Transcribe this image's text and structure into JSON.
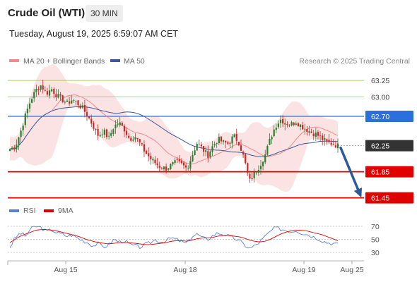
{
  "header": {
    "instrument": "Crude Oil (WTI)",
    "timeframe": "30 MIN",
    "datetime": "Tuesday, August 19, 2025 6:59:07 AM CET"
  },
  "legend": {
    "ma20_label": "MA 20 + Bollinger Bands",
    "ma50_label": "MA 50",
    "copyright": "Research © 2025 Trading Central"
  },
  "colors": {
    "bull_candle": "#2e7d32",
    "bear_candle": "#c62828",
    "ma20": "#ef8a8a",
    "ma50": "#3b5998",
    "bollinger_fill": "#fbdada",
    "support": "#e00000",
    "resistance": "#2a6fdb",
    "upper_levels": "#8bc34a",
    "arrow": "#2b5a99",
    "rsi": "#5b7fd6",
    "rsi_ma": "#e00000"
  },
  "chart_data": [
    {
      "type": "candlestick",
      "title": "Crude Oil (WTI)",
      "timeframe": "30 MIN",
      "xlabel": "",
      "ylabel": "",
      "ylim": [
        61.4,
        63.4
      ],
      "x_ticks": [
        "Aug 15",
        "Aug 18",
        "Aug 19",
        "Aug 25"
      ],
      "series": [
        {
          "name": "MA 20 + Bollinger Bands",
          "style": "line-with-band"
        },
        {
          "name": "MA 50",
          "style": "line"
        }
      ],
      "levels": [
        {
          "value": 63.25,
          "label": "63.25",
          "kind": "target"
        },
        {
          "value": 63.0,
          "label": "63.00",
          "kind": "target"
        },
        {
          "value": 62.7,
          "label": "62.70",
          "kind": "resistance"
        },
        {
          "value": 62.25,
          "label": "62.25",
          "kind": "last-price"
        },
        {
          "value": 61.85,
          "label": "61.85",
          "kind": "support"
        },
        {
          "value": 61.45,
          "label": "61.45",
          "kind": "support"
        }
      ],
      "projection": {
        "from": 62.25,
        "to": 61.45,
        "direction": "down"
      },
      "close_path": [
        62.2,
        62.23,
        62.45,
        62.72,
        62.95,
        63.1,
        63.18,
        63.05,
        63.12,
        63.02,
        62.96,
        62.9,
        62.96,
        62.9,
        62.82,
        62.7,
        62.55,
        62.4,
        62.48,
        62.36,
        62.55,
        62.6,
        62.5,
        62.35,
        62.4,
        62.28,
        62.15,
        62.05,
        61.98,
        61.92,
        61.9,
        61.95,
        62.0,
        61.96,
        61.9,
        62.1,
        62.3,
        62.2,
        62.1,
        62.25,
        62.35,
        62.3,
        62.28,
        62.4,
        62.3,
        62.05,
        61.7,
        61.82,
        61.95,
        62.1,
        62.35,
        62.55,
        62.65,
        62.6,
        62.58,
        62.62,
        62.55,
        62.5,
        62.45,
        62.42,
        62.35,
        62.3,
        62.28,
        62.25
      ]
    },
    {
      "type": "line",
      "title": "RSI",
      "series": [
        {
          "name": "RSI",
          "values": [
            38,
            52,
            60,
            55,
            66,
            70,
            68,
            62,
            65,
            60,
            58,
            55,
            57,
            52,
            48,
            45,
            40,
            44,
            38,
            42,
            50,
            46,
            48,
            42,
            40,
            38,
            42,
            45,
            50,
            46,
            48,
            52,
            50,
            46,
            44,
            55,
            58,
            52,
            50,
            56,
            60,
            58,
            55,
            52,
            48,
            42,
            36,
            40,
            46,
            54,
            62,
            68,
            66,
            64,
            62,
            64,
            60,
            58,
            55,
            52,
            48,
            45,
            44,
            42
          ]
        },
        {
          "name": "9MA",
          "values": [
            45,
            50,
            55,
            58,
            61,
            64,
            65,
            65,
            64,
            63,
            61,
            59,
            57,
            55,
            52,
            49,
            47,
            45,
            44,
            43,
            44,
            45,
            45,
            45,
            44,
            43,
            42,
            42,
            43,
            44,
            45,
            47,
            48,
            48,
            47,
            49,
            51,
            52,
            52,
            53,
            55,
            56,
            56,
            55,
            54,
            52,
            49,
            47,
            46,
            47,
            50,
            54,
            58,
            61,
            63,
            64,
            64,
            63,
            61,
            59,
            57,
            54,
            51,
            48
          ]
        }
      ],
      "y_ticks": [
        70,
        50,
        30
      ],
      "ylim": [
        20,
        80
      ]
    }
  ]
}
